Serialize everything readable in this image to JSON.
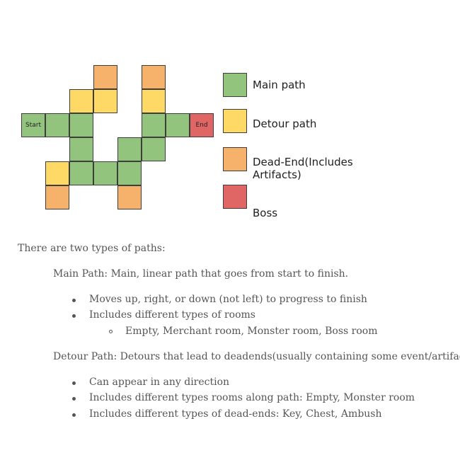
{
  "colors": {
    "main": "#93c47d",
    "detour": "#ffd966",
    "dead_end": "#f6b26b",
    "boss": "#e06666"
  },
  "grid": {
    "cells": [
      {
        "type": "dead_end"
      },
      {
        "type": "dead_end"
      },
      {
        "type": "detour"
      },
      {
        "type": "detour"
      },
      {
        "type": "detour"
      },
      {
        "type": "main",
        "label": "Start"
      },
      {
        "type": "main"
      },
      {
        "type": "main"
      },
      {
        "type": "main"
      },
      {
        "type": "main"
      },
      {
        "type": "boss",
        "label": "End"
      },
      {
        "type": "main"
      },
      {
        "type": "main"
      },
      {
        "type": "main"
      },
      {
        "type": "detour"
      },
      {
        "type": "main"
      },
      {
        "type": "main"
      },
      {
        "type": "main"
      },
      {
        "type": "dead_end"
      },
      {
        "type": "dead_end"
      }
    ]
  },
  "legend": [
    {
      "type": "main",
      "label": "Main path"
    },
    {
      "type": "detour",
      "label": "Detour path"
    },
    {
      "type": "dead_end",
      "label": "Dead-End(Includes",
      "label2": "Artifacts)"
    },
    {
      "type": "boss",
      "label": "Boss"
    }
  ],
  "text": {
    "intro": "There are two types of paths:",
    "main_heading": "Main Path: Main, linear path that goes from start to finish.",
    "main_bullets": [
      "Moves up, right, or down (not left) to progress to finish",
      "Includes different types of rooms"
    ],
    "main_sub_bullets": [
      "Empty, Merchant room, Monster room, Boss room"
    ],
    "detour_heading": "Detour Path: Detours that lead to deadends(usually containing some event/artifact)",
    "detour_bullets": [
      "Can appear in any direction",
      "Includes different types rooms along path: Empty, Monster room",
      "Includes different types of dead-ends: Key, Chest, Ambush"
    ]
  }
}
